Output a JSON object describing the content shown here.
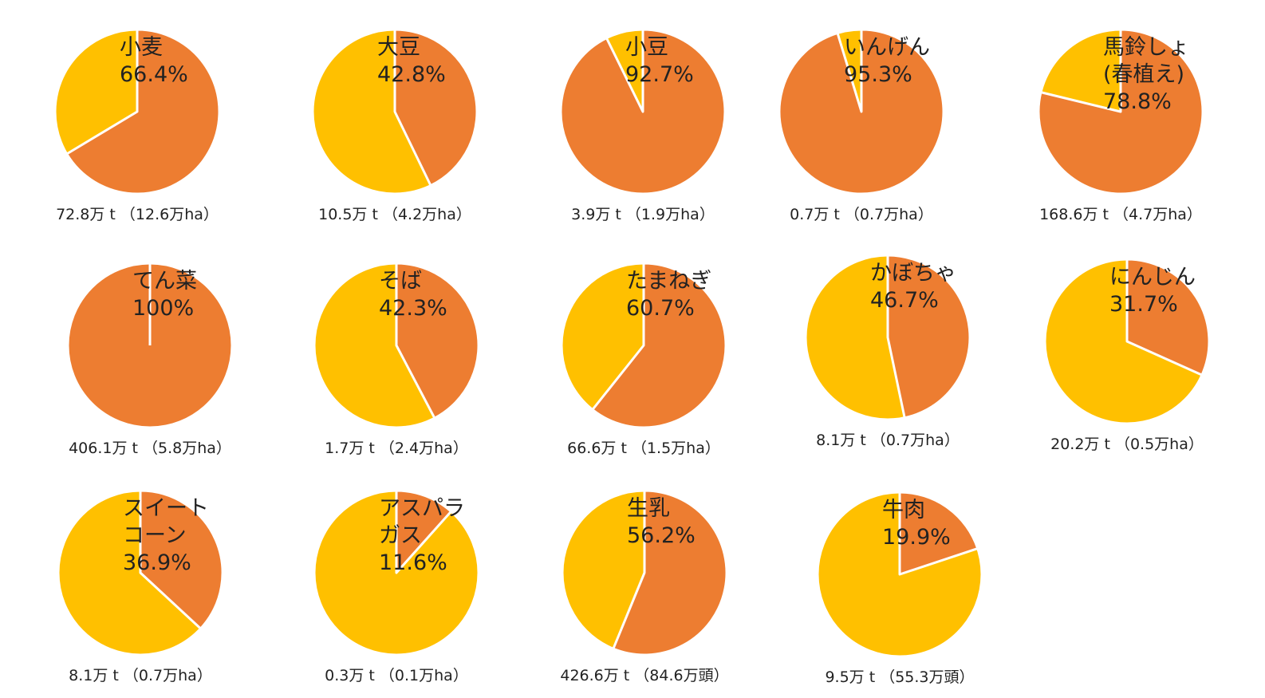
{
  "chart_data": [
    {
      "type": "pie",
      "title": [
        "小麦"
      ],
      "values": [
        66.4
      ],
      "value_labels": [
        "66.4%"
      ],
      "note": "72.8万 t （12.6万ha）",
      "color": "#ed7d31",
      "rest_color": "#ffc000"
    },
    {
      "type": "pie",
      "title": [
        "大豆"
      ],
      "values": [
        42.8
      ],
      "value_labels": [
        "42.8%"
      ],
      "note": "10.5万 t （4.2万ha）",
      "color": "#ed7d31",
      "rest_color": "#ffc000"
    },
    {
      "type": "pie",
      "title": [
        "小豆"
      ],
      "values": [
        92.7
      ],
      "value_labels": [
        "92.7%"
      ],
      "note": "3.9万 t （1.9万ha）",
      "color": "#ed7d31",
      "rest_color": "#ffc000"
    },
    {
      "type": "pie",
      "title": [
        "いんげん"
      ],
      "values": [
        95.3
      ],
      "value_labels": [
        "95.3%"
      ],
      "note": "0.7万 t （0.7万ha）",
      "color": "#ed7d31",
      "rest_color": "#ffc000"
    },
    {
      "type": "pie",
      "title": [
        "馬鈴しょ",
        "(春植え)"
      ],
      "values": [
        78.8
      ],
      "value_labels": [
        "78.8%"
      ],
      "note": "168.6万 t （4.7万ha）",
      "color": "#ed7d31",
      "rest_color": "#ffc000"
    },
    {
      "type": "pie",
      "title": [
        "てん菜"
      ],
      "values": [
        100
      ],
      "value_labels": [
        "100%"
      ],
      "note": "406.1万 t （5.8万ha）",
      "color": "#ed7d31",
      "rest_color": "#ffc000"
    },
    {
      "type": "pie",
      "title": [
        "そば"
      ],
      "values": [
        42.3
      ],
      "value_labels": [
        "42.3%"
      ],
      "note": "1.7万 t （2.4万ha）",
      "color": "#ed7d31",
      "rest_color": "#ffc000"
    },
    {
      "type": "pie",
      "title": [
        "たまねぎ"
      ],
      "values": [
        60.7
      ],
      "value_labels": [
        "60.7%"
      ],
      "note": "66.6万 t （1.5万ha）",
      "color": "#ed7d31",
      "rest_color": "#ffc000"
    },
    {
      "type": "pie",
      "title": [
        "かぼちゃ"
      ],
      "values": [
        46.7
      ],
      "value_labels": [
        "46.7%"
      ],
      "note": "8.1万 t （0.7万ha）",
      "color": "#ed7d31",
      "rest_color": "#ffc000"
    },
    {
      "type": "pie",
      "title": [
        "にんじん"
      ],
      "values": [
        31.7
      ],
      "value_labels": [
        "31.7%"
      ],
      "note": "20.2万 t （0.5万ha）",
      "color": "#ed7d31",
      "rest_color": "#ffc000"
    },
    {
      "type": "pie",
      "title": [
        "スイート",
        "コーン"
      ],
      "values": [
        36.9
      ],
      "value_labels": [
        "36.9%"
      ],
      "note": "8.1万 t （0.7万ha）",
      "color": "#ed7d31",
      "rest_color": "#ffc000"
    },
    {
      "type": "pie",
      "title": [
        "アスパラ",
        "ガス"
      ],
      "values": [
        11.6
      ],
      "value_labels": [
        "11.6%"
      ],
      "note": "0.3万 t （0.1万ha）",
      "color": "#ed7d31",
      "rest_color": "#ffc000"
    },
    {
      "type": "pie",
      "title": [
        "生乳"
      ],
      "values": [
        56.2
      ],
      "value_labels": [
        "56.2%"
      ],
      "note": "426.6万 t （84.6万頭）",
      "color": "#ed7d31",
      "rest_color": "#ffc000"
    },
    {
      "type": "pie",
      "title": [
        "牛肉"
      ],
      "values": [
        19.9
      ],
      "value_labels": [
        "19.9%"
      ],
      "note": "9.5万 t （55.3万頭）",
      "color": "#ed7d31",
      "rest_color": "#ffc000"
    }
  ]
}
